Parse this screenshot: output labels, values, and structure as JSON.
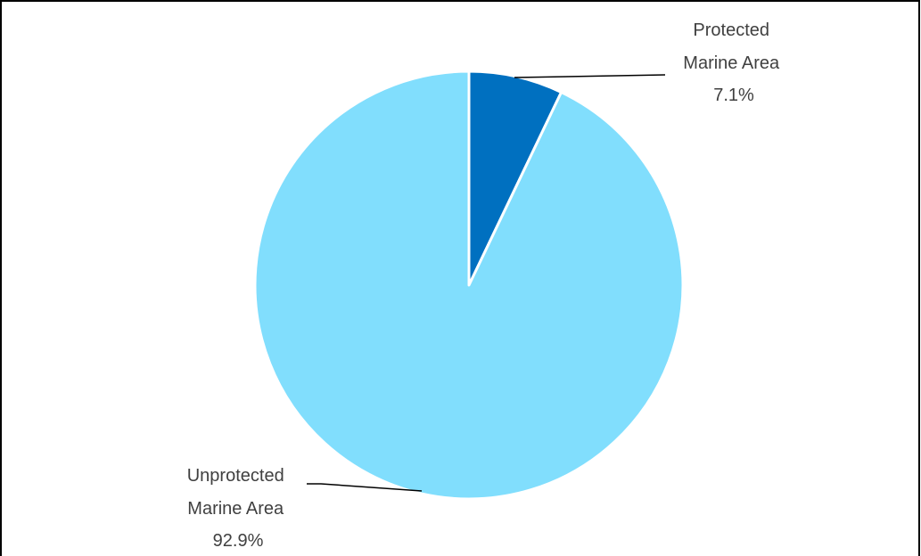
{
  "chart_data": {
    "type": "pie",
    "slices": [
      {
        "label_lines": [
          "Protected",
          "Marine Area"
        ],
        "value": 7.1,
        "value_label": "7.1%",
        "color": "#0070C0"
      },
      {
        "label_lines": [
          "Unprotected",
          "Marine Area"
        ],
        "value": 92.9,
        "value_label": "92.9%",
        "color": "#81DEFD"
      }
    ],
    "start_angle": "12 o'clock",
    "direction": "clockwise",
    "slice_border_color": "#FFFFFF",
    "frame_border_color": "#000000",
    "leader_line_color": "#000000"
  }
}
